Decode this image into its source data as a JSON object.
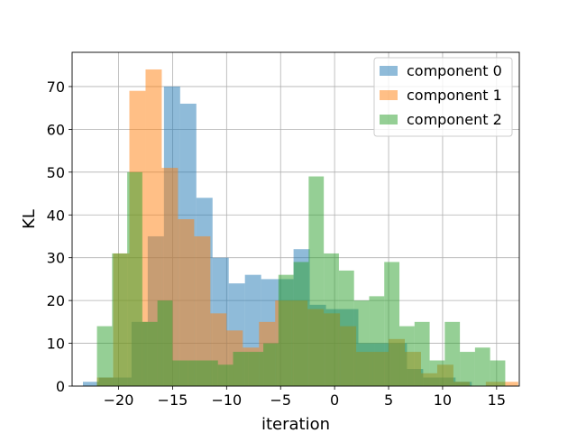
{
  "chart_data": {
    "type": "bar",
    "title": "",
    "xlabel": "iteration",
    "ylabel": "KL",
    "xlim": [
      -24.3,
      17.1
    ],
    "ylim": [
      0,
      78
    ],
    "xticks": [
      -20,
      -15,
      -10,
      -5,
      0,
      5,
      10,
      15
    ],
    "yticks": [
      0,
      10,
      20,
      30,
      40,
      50,
      60,
      70
    ],
    "grid": true,
    "legend_position": "top-right",
    "alpha": 0.5,
    "series": [
      {
        "name": "component 0",
        "color": "#1f77b4",
        "bin_width": 1.5,
        "bins": [
          [
            -23.3,
            1
          ],
          [
            -21.8,
            2
          ],
          [
            -20.3,
            2
          ],
          [
            -18.8,
            15
          ],
          [
            -17.3,
            35
          ],
          [
            -15.8,
            70
          ],
          [
            -14.3,
            66
          ],
          [
            -12.8,
            44
          ],
          [
            -11.3,
            30
          ],
          [
            -9.8,
            24
          ],
          [
            -8.3,
            26
          ],
          [
            -6.8,
            25
          ],
          [
            -5.3,
            25
          ],
          [
            -3.8,
            32
          ],
          [
            -2.3,
            19
          ],
          [
            -0.8,
            18
          ],
          [
            0.7,
            18
          ],
          [
            2.2,
            10
          ],
          [
            3.7,
            10
          ],
          [
            5.2,
            10
          ],
          [
            6.7,
            4
          ],
          [
            8.2,
            2
          ],
          [
            9.7,
            2
          ],
          [
            11.2,
            1
          ],
          [
            12.7,
            0
          ],
          [
            14.2,
            0
          ]
        ]
      },
      {
        "name": "component 1",
        "color": "#ff7f0e",
        "bin_width": 1.5,
        "bins": [
          [
            -22.0,
            2
          ],
          [
            -20.5,
            31
          ],
          [
            -19.0,
            69
          ],
          [
            -17.5,
            74
          ],
          [
            -16.0,
            51
          ],
          [
            -14.5,
            39
          ],
          [
            -13.0,
            35
          ],
          [
            -11.5,
            17
          ],
          [
            -10.0,
            13
          ],
          [
            -8.5,
            9
          ],
          [
            -7.0,
            15
          ],
          [
            -5.5,
            20
          ],
          [
            -4.0,
            20
          ],
          [
            -2.5,
            18
          ],
          [
            -1.0,
            17
          ],
          [
            0.5,
            14
          ],
          [
            2.0,
            8
          ],
          [
            3.5,
            8
          ],
          [
            5.0,
            11
          ],
          [
            6.5,
            8
          ],
          [
            8.0,
            3
          ],
          [
            9.5,
            5
          ],
          [
            11.0,
            1
          ],
          [
            12.5,
            0
          ],
          [
            14.0,
            1
          ],
          [
            15.5,
            1
          ]
        ]
      },
      {
        "name": "component 2",
        "color": "#2ca02c",
        "bin_width": 1.4,
        "bins": [
          [
            -22.0,
            14
          ],
          [
            -20.6,
            31
          ],
          [
            -19.2,
            50
          ],
          [
            -17.8,
            15
          ],
          [
            -16.4,
            20
          ],
          [
            -15.0,
            6
          ],
          [
            -13.6,
            6
          ],
          [
            -12.2,
            6
          ],
          [
            -10.8,
            5
          ],
          [
            -9.4,
            8
          ],
          [
            -8.0,
            8
          ],
          [
            -6.6,
            10
          ],
          [
            -5.2,
            26
          ],
          [
            -3.8,
            29
          ],
          [
            -2.4,
            49
          ],
          [
            -1.0,
            31
          ],
          [
            0.4,
            27
          ],
          [
            1.8,
            20
          ],
          [
            3.2,
            21
          ],
          [
            4.6,
            29
          ],
          [
            6.0,
            14
          ],
          [
            7.4,
            15
          ],
          [
            8.8,
            6
          ],
          [
            10.2,
            15
          ],
          [
            11.6,
            8
          ],
          [
            13.0,
            9
          ],
          [
            14.4,
            6
          ]
        ]
      }
    ]
  }
}
